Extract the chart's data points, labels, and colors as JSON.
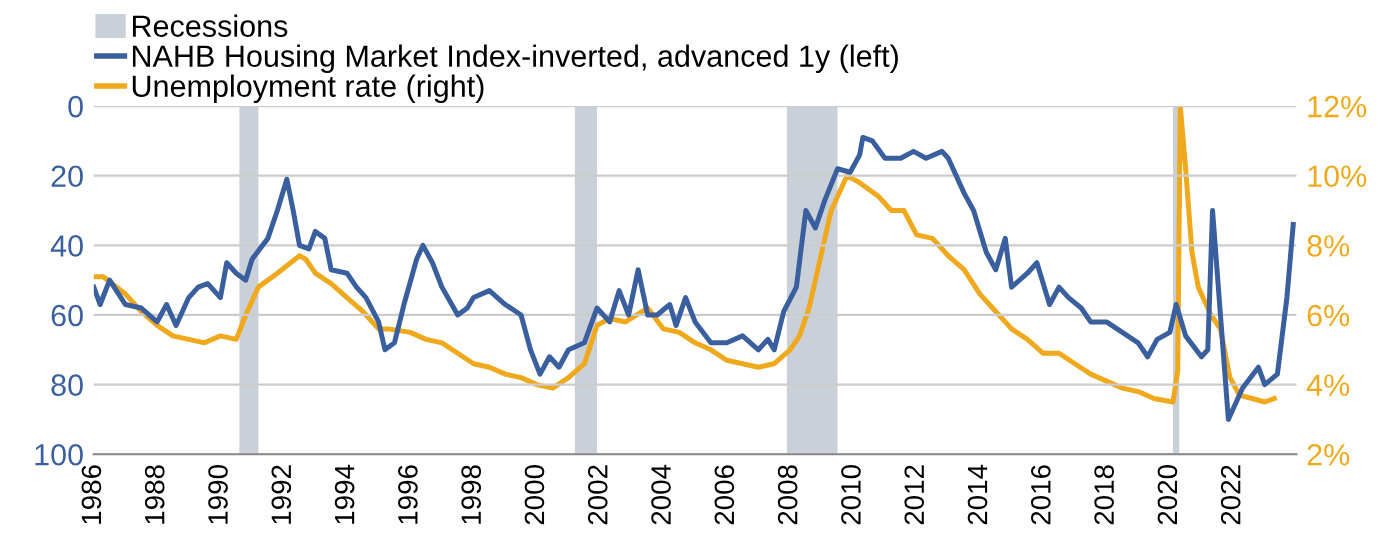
{
  "chart_data": {
    "type": "line",
    "series": [
      {
        "name": "NAHB Housing Market Index-inverted, advanced 1y (left)",
        "color": "#3a5f9e",
        "axis": "y",
        "x": [
          1986.0,
          1986.2,
          1986.5,
          1987.0,
          1987.5,
          1988.0,
          1988.3,
          1988.6,
          1989.0,
          1989.3,
          1989.6,
          1990.0,
          1990.2,
          1990.5,
          1990.8,
          1991.0,
          1991.5,
          1991.8,
          1992.1,
          1992.3,
          1992.5,
          1992.8,
          1993.0,
          1993.3,
          1993.5,
          1994.0,
          1994.3,
          1994.6,
          1995.0,
          1995.2,
          1995.5,
          1995.8,
          1996.2,
          1996.4,
          1996.7,
          1997.0,
          1997.5,
          1997.8,
          1998.0,
          1998.5,
          1999.0,
          1999.5,
          1999.8,
          2000.1,
          2000.4,
          2000.7,
          2001.0,
          2001.5,
          2001.9,
          2002.3,
          2002.6,
          2002.9,
          2003.2,
          2003.5,
          2003.8,
          2004.2,
          2004.4,
          2004.7,
          2005.0,
          2005.5,
          2006.0,
          2006.5,
          2007.0,
          2007.3,
          2007.5,
          2007.8,
          2008.2,
          2008.5,
          2008.8,
          2009.1,
          2009.5,
          2009.9,
          2010.2,
          2010.3,
          2010.6,
          2011.0,
          2011.5,
          2011.9,
          2012.3,
          2012.8,
          2013.0,
          2013.5,
          2013.8,
          2014.2,
          2014.5,
          2014.8,
          2015.0,
          2015.5,
          2015.8,
          2016.2,
          2016.5,
          2016.8,
          2017.2,
          2017.5,
          2018.0,
          2018.5,
          2019.0,
          2019.3,
          2019.6,
          2020.0,
          2020.2,
          2020.5,
          2021.0,
          2021.2,
          2021.35,
          2021.6,
          2021.85,
          2022.3,
          2022.8,
          2023.0,
          2023.4,
          2023.7,
          2023.9
        ],
        "values": [
          52,
          57,
          50,
          57,
          58,
          62,
          57,
          63,
          55,
          52,
          51,
          55,
          45,
          48,
          50,
          44,
          38,
          30,
          21,
          30,
          40,
          41,
          36,
          38,
          47,
          48,
          52,
          55,
          62,
          70,
          68,
          57,
          44,
          40,
          45,
          52,
          60,
          58,
          55,
          53,
          57,
          60,
          70,
          77,
          72,
          75,
          70,
          68,
          58,
          62,
          53,
          60,
          47,
          60,
          60,
          57,
          63,
          55,
          62,
          68,
          68,
          66,
          70,
          67,
          70,
          59,
          52,
          30,
          35,
          27,
          18,
          19,
          14,
          9,
          10,
          15,
          15,
          13,
          15,
          13,
          15,
          25,
          30,
          42,
          47,
          38,
          52,
          48,
          45,
          57,
          52,
          55,
          58,
          62,
          62,
          65,
          68,
          72,
          67,
          65,
          57,
          66,
          72,
          70,
          30,
          60,
          90,
          81,
          75,
          80,
          77,
          55,
          34
        ]
      },
      {
        "name": "Unemployment rate (right)",
        "color": "#f0a81c",
        "axis": "y2",
        "x": [
          1986.0,
          1986.3,
          1987.0,
          1987.5,
          1988.0,
          1988.5,
          1989.0,
          1989.5,
          1990.0,
          1990.5,
          1990.8,
          1991.2,
          1991.8,
          1992.5,
          1992.7,
          1993.0,
          1993.5,
          1994.0,
          1994.5,
          1995.0,
          1995.3,
          1996.0,
          1996.5,
          1997.0,
          1997.5,
          1998.0,
          1998.5,
          1999.0,
          1999.5,
          2000.0,
          2000.5,
          2001.0,
          2001.5,
          2001.9,
          2002.3,
          2002.8,
          2003.5,
          2004.0,
          2004.5,
          2005.0,
          2005.5,
          2006.0,
          2006.5,
          2007.0,
          2007.5,
          2008.0,
          2008.3,
          2008.6,
          2009.0,
          2009.3,
          2009.8,
          2010.2,
          2010.8,
          2011.2,
          2011.6,
          2012.0,
          2012.5,
          2013.0,
          2013.5,
          2014.0,
          2014.5,
          2015.0,
          2015.5,
          2016.0,
          2016.5,
          2017.0,
          2017.5,
          2018.0,
          2018.5,
          2019.0,
          2019.5,
          2020.1,
          2020.25,
          2020.33,
          2020.5,
          2020.7,
          2020.9,
          2021.3,
          2021.6,
          2021.9,
          2022.2,
          2022.6,
          2023.0,
          2023.3
        ],
        "values": [
          7.1,
          7.1,
          6.6,
          6.1,
          5.7,
          5.4,
          5.3,
          5.2,
          5.4,
          5.3,
          6.0,
          6.8,
          7.2,
          7.7,
          7.6,
          7.2,
          6.9,
          6.5,
          6.1,
          5.6,
          5.6,
          5.5,
          5.3,
          5.2,
          4.9,
          4.6,
          4.5,
          4.3,
          4.2,
          4.0,
          3.9,
          4.2,
          4.6,
          5.7,
          5.9,
          5.8,
          6.2,
          5.6,
          5.5,
          5.2,
          5.0,
          4.7,
          4.6,
          4.5,
          4.6,
          5.0,
          5.4,
          6.2,
          7.8,
          9.0,
          10.0,
          9.8,
          9.4,
          9.0,
          9.0,
          8.3,
          8.2,
          7.7,
          7.3,
          6.6,
          6.1,
          5.6,
          5.3,
          4.9,
          4.9,
          4.6,
          4.3,
          4.1,
          3.9,
          3.8,
          3.6,
          3.5,
          4.4,
          12.0,
          10.2,
          7.8,
          6.8,
          6.0,
          5.6,
          4.2,
          3.7,
          3.6,
          3.5,
          3.6
        ]
      }
    ],
    "bands": [
      {
        "axis": "x",
        "from": 1990.6,
        "to": 1991.2,
        "label": "Recessions",
        "color": "#c9d0d8"
      },
      {
        "axis": "x",
        "from": 2001.2,
        "to": 2001.9,
        "color": "#c9d0d8"
      },
      {
        "axis": "x",
        "from": 2007.9,
        "to": 2009.5,
        "color": "#c9d0d8"
      },
      {
        "axis": "x",
        "from": 2020.1,
        "to": 2020.3,
        "color": "#c9d0d8"
      }
    ],
    "xlim": [
      1986,
      2024
    ],
    "xticks": [
      1986,
      1988,
      1990,
      1992,
      1994,
      1996,
      1998,
      2000,
      2002,
      2004,
      2006,
      2008,
      2010,
      2012,
      2014,
      2016,
      2018,
      2020,
      2022
    ],
    "ylim": [
      100,
      0
    ],
    "yticks": [
      0,
      20,
      40,
      60,
      80,
      100
    ],
    "y2lim": [
      2,
      12
    ],
    "y2ticks": [
      {
        "value": 2,
        "label": "2%"
      },
      {
        "value": 4,
        "label": "4%"
      },
      {
        "value": 6,
        "label": "6%"
      },
      {
        "value": 8,
        "label": "8%"
      },
      {
        "value": 10,
        "label": "10%"
      },
      {
        "value": 12,
        "label": "12%"
      }
    ],
    "grid": "y",
    "legend": "top left"
  }
}
